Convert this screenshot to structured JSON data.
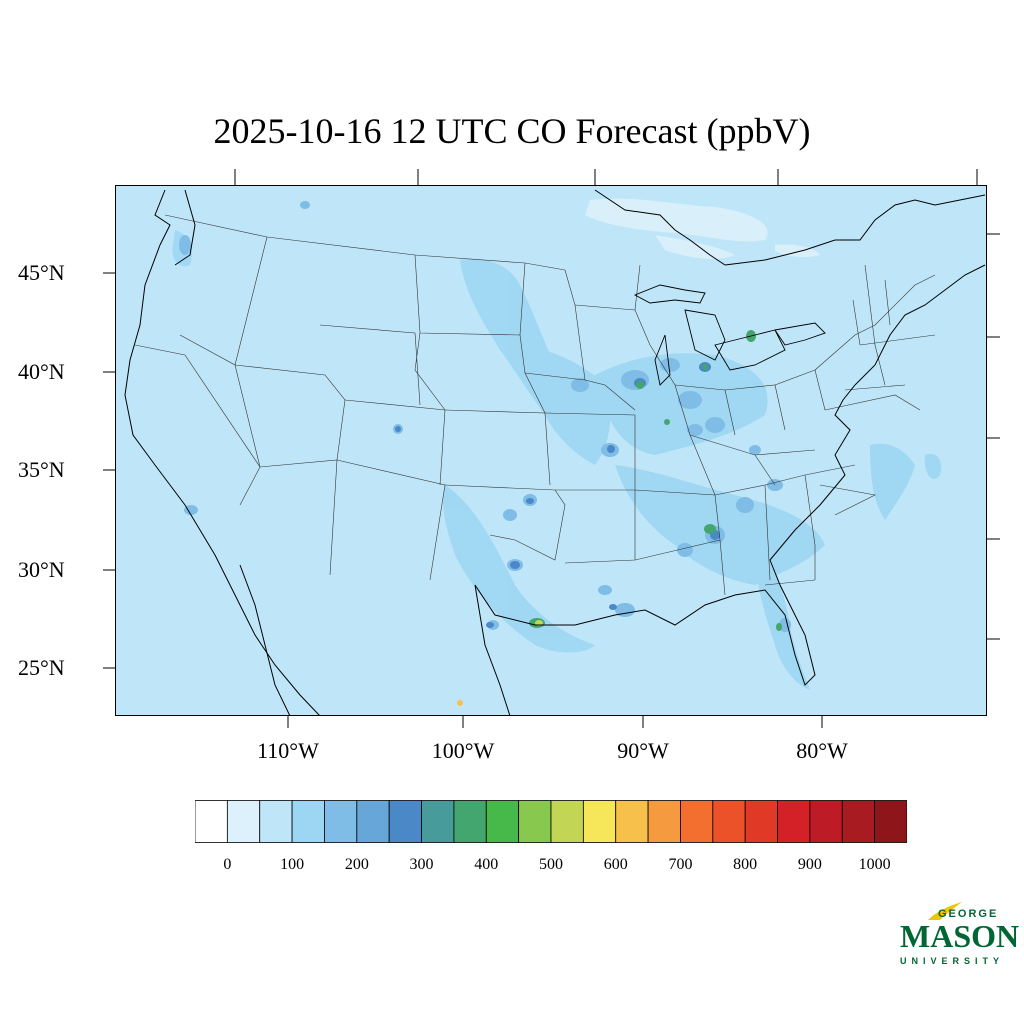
{
  "title": "2025-10-16 12 UTC CO Forecast (ppbV)",
  "map": {
    "lat_labels": [
      "45°N",
      "40°N",
      "35°N",
      "30°N",
      "25°N"
    ],
    "lon_labels": [
      "110°W",
      "100°W",
      "90°W",
      "80°W"
    ],
    "background_color": "#bfe6f8",
    "hotspots": [
      {
        "place": "Houston",
        "level": 500
      },
      {
        "place": "Atlanta",
        "level": 400
      },
      {
        "place": "Chicago",
        "level": 300
      },
      {
        "place": "Detroit",
        "level": 300
      },
      {
        "place": "Toronto",
        "level": 400
      },
      {
        "place": "Tampa",
        "level": 300
      },
      {
        "place": "Monterrey",
        "level": 650
      }
    ]
  },
  "colorbar": {
    "labels": [
      "0",
      "100",
      "200",
      "300",
      "400",
      "500",
      "600",
      "700",
      "800",
      "900",
      "1000"
    ],
    "colors": [
      "#ffffff",
      "#dcf1fb",
      "#bfe6f8",
      "#9dd6f2",
      "#7fbde6",
      "#66a6d9",
      "#4a88c7",
      "#479b9b",
      "#43a66f",
      "#47b84a",
      "#88c84e",
      "#c2d555",
      "#f5e65a",
      "#f7c04a",
      "#f59a3e",
      "#f26f30",
      "#ec5229",
      "#e03a26",
      "#d42127",
      "#bd1c26",
      "#a81b21",
      "#8e161b"
    ]
  },
  "logo": {
    "line1": "GEORGE",
    "line2": "MASON",
    "line3": "UNIVERSITY"
  }
}
